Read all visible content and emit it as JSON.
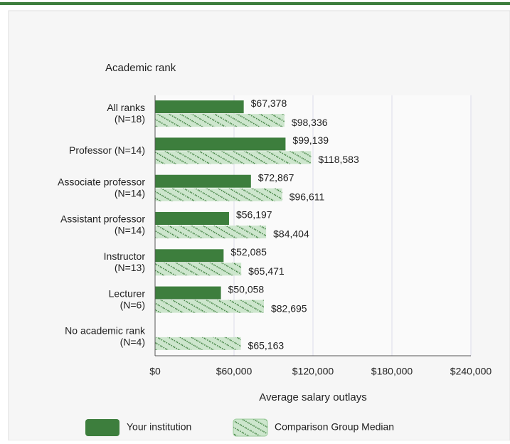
{
  "chart_data": {
    "type": "bar",
    "orientation": "horizontal",
    "title": "Academic rank",
    "x_label": "Average salary outlays",
    "categories": [
      [
        "All ranks",
        "(N=18)"
      ],
      [
        "Professor (N=14)"
      ],
      [
        "Associate professor",
        "(N=14)"
      ],
      [
        "Assistant professor",
        "(N=14)"
      ],
      [
        "Instructor",
        "(N=13)"
      ],
      [
        "Lecturer",
        "(N=6)"
      ],
      [
        "No academic rank",
        "(N=4)"
      ]
    ],
    "series": [
      {
        "name": "Your institution",
        "color": "#3d7e3d",
        "pattern": "solid",
        "values": [
          67378,
          99139,
          72867,
          56197,
          52085,
          50058,
          null
        ],
        "value_labels": [
          "$67,378",
          "$99,139",
          "$72,867",
          "$56,197",
          "$52,085",
          "$50,058",
          null
        ]
      },
      {
        "name": "Comparison Group Median",
        "color": "#cde6cd",
        "pattern": "hatched",
        "values": [
          98336,
          118583,
          96611,
          84404,
          65471,
          82695,
          65163
        ],
        "value_labels": [
          "$98,336",
          "$118,583",
          "$96,611",
          "$84,404",
          "$65,471",
          "$82,695",
          "$65,163"
        ]
      }
    ],
    "xlim": [
      0,
      240000
    ],
    "xticks": [
      {
        "value": 0,
        "label": "$0"
      },
      {
        "value": 60000,
        "label": "$60,000"
      },
      {
        "value": 120000,
        "label": "$120,000"
      },
      {
        "value": 180000,
        "label": "$180,000"
      },
      {
        "value": 240000,
        "label": "$240,000"
      }
    ],
    "grid": true,
    "legend": "bottom"
  }
}
